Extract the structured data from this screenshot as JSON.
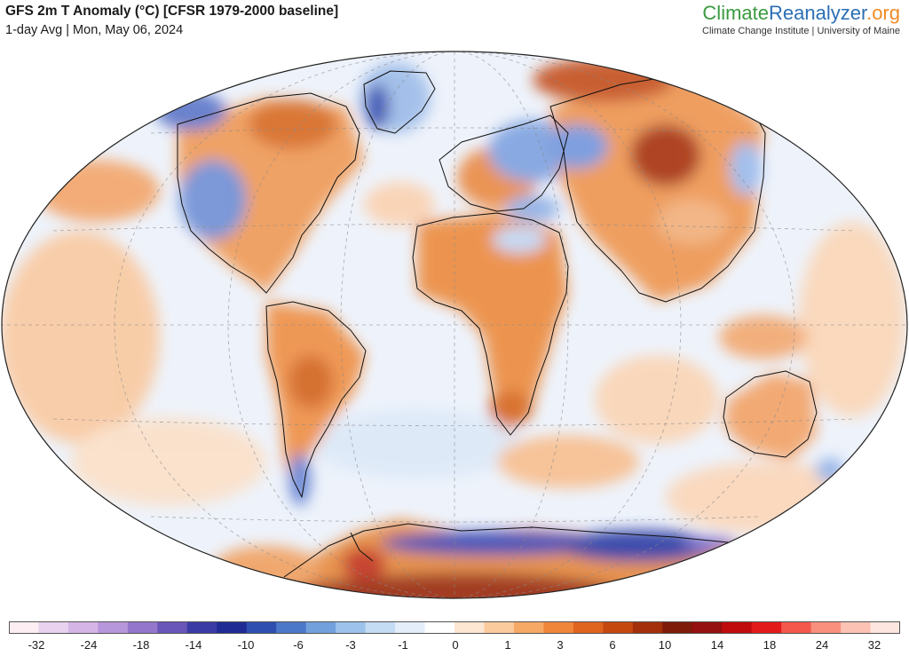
{
  "header": {
    "title": "GFS 2m T Anomaly (°C) [CFSR 1979-2000 baseline]",
    "subtitle": "1-day Avg | Mon, May 06, 2024"
  },
  "brand": {
    "part1": "Climate",
    "part2": "Reanalyzer",
    "part3": ".org",
    "tagline": "Climate Change Institute | University of Maine"
  },
  "legend": {
    "colors": [
      "#fdeef3",
      "#e8d2ef",
      "#d4b5e6",
      "#b797dc",
      "#9476cc",
      "#6a55b8",
      "#3b3ba6",
      "#1f2a94",
      "#2e4fb0",
      "#4b78c8",
      "#72a0dc",
      "#9dc3ec",
      "#c4dcf4",
      "#e4eefa",
      "#ffffff",
      "#fde6d2",
      "#fbcb9e",
      "#f6a865",
      "#f0863a",
      "#e0641e",
      "#c5480f",
      "#a3300a",
      "#7e1a08",
      "#951010",
      "#c00c0c",
      "#e31a1a",
      "#f4574c",
      "#f9907e",
      "#fcc2b3",
      "#fde6df"
    ],
    "ticks": [
      "-32",
      "-24",
      "-18",
      "-14",
      "-10",
      "-6",
      "-3",
      "-1",
      "0",
      "1",
      "3",
      "6",
      "10",
      "14",
      "18",
      "24",
      "32"
    ]
  }
}
